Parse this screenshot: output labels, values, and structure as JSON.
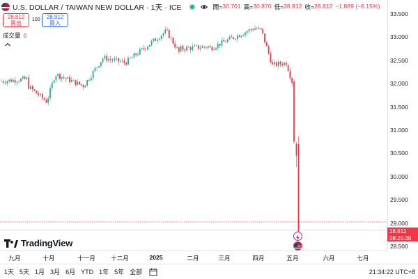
{
  "header": {
    "symbol": "U.S. DOLLAR / TAIWAN NEW DOLLAR · 1天 · ICE",
    "ohlc": {
      "open_label": "開=",
      "open": "30.701",
      "high_label": "高=",
      "high": "30.870",
      "low_label": "低=",
      "low": "28.812",
      "close_label": "收=",
      "close": "28.812",
      "change": "−1.889 (−6.15%)"
    }
  },
  "trade": {
    "sell_price": "28.812",
    "sell_label": "賣出",
    "spread": "100",
    "buy_price": "28.912",
    "buy_label": "買入"
  },
  "volume": {
    "label": "成交量",
    "value": "0"
  },
  "price_axis": {
    "ticks": [
      "33.500",
      "33.000",
      "32.500",
      "32.000",
      "31.500",
      "31.000",
      "30.500",
      "30.000",
      "29.500",
      "29.000",
      "28.500"
    ]
  },
  "last_price": {
    "price": "28.812",
    "countdown": "08:25:38"
  },
  "time_axis": {
    "ticks": [
      "九月",
      "十月",
      "十一月",
      "十二月",
      "2025",
      "二月",
      "三月",
      "四月",
      "五月",
      "六月",
      "七月"
    ]
  },
  "branding": {
    "logo_text": "TradingView"
  },
  "bottom_bar": {
    "ranges": [
      "1天",
      "5天",
      "1月",
      "3月",
      "6月",
      "YTD",
      "1年",
      "5年",
      "全部"
    ],
    "clock": "21:34:22 UTC+8"
  },
  "colors": {
    "up": "#22ab94",
    "down": "#f23645",
    "accent": "#2962ff"
  },
  "chart_data": {
    "type": "candlestick",
    "title": "U.S. DOLLAR / TAIWAN NEW DOLLAR · 1天 · ICE",
    "ylim": [
      28.5,
      33.5
    ],
    "last_value": 28.812,
    "series": [
      {
        "name": "close",
        "x": [
          "九月",
          "十月",
          "十一月",
          "十二月",
          "2025",
          "二月",
          "三月",
          "四月",
          "五月"
        ],
        "values": [
          32.0,
          31.9,
          32.1,
          32.6,
          32.85,
          32.85,
          32.9,
          33.1,
          28.8
        ]
      }
    ]
  }
}
